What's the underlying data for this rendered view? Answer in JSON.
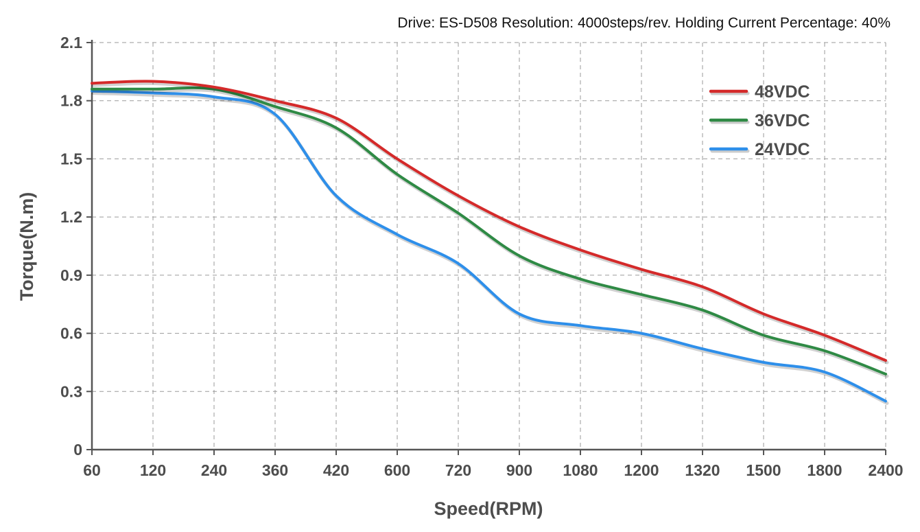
{
  "chart_data": {
    "type": "line",
    "title": "Drive: ES-D508 Resolution: 4000steps/rev. Holding Current Percentage: 40%",
    "xlabel": "Speed(RPM)",
    "ylabel": "Torque(N.m)",
    "categories": [
      "60",
      "120",
      "240",
      "360",
      "420",
      "600",
      "720",
      "900",
      "1080",
      "1200",
      "1320",
      "1500",
      "1800",
      "2400"
    ],
    "yticks": [
      "0",
      "0.3",
      "0.6",
      "0.9",
      "1.2",
      "1.5",
      "1.8",
      "2.1"
    ],
    "ylim": [
      0,
      2.1
    ],
    "grid": true,
    "legend_position": "top-right",
    "series": [
      {
        "name": "48VDC",
        "color": "#d42a2a",
        "values": [
          1.89,
          1.9,
          1.87,
          1.8,
          1.71,
          1.5,
          1.31,
          1.15,
          1.03,
          0.93,
          0.84,
          0.7,
          0.59,
          0.46
        ]
      },
      {
        "name": "36VDC",
        "color": "#2f8a45",
        "values": [
          1.86,
          1.86,
          1.86,
          1.77,
          1.66,
          1.42,
          1.22,
          1.0,
          0.88,
          0.8,
          0.72,
          0.59,
          0.51,
          0.39
        ]
      },
      {
        "name": "24VDC",
        "color": "#2e8fea",
        "values": [
          1.85,
          1.84,
          1.82,
          1.73,
          1.31,
          1.11,
          0.96,
          0.7,
          0.64,
          0.6,
          0.52,
          0.45,
          0.4,
          0.25
        ]
      }
    ]
  }
}
